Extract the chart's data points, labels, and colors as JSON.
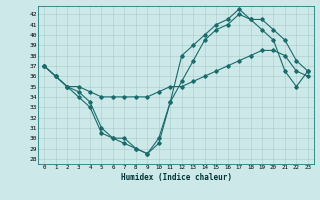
{
  "xlabel": "Humidex (Indice chaleur)",
  "ylabel": "",
  "bg_color": "#cde8e8",
  "grid_color": "#a8cccc",
  "line_color": "#1a6b6b",
  "xlim": [
    -0.5,
    23.5
  ],
  "ylim": [
    27.5,
    42.8
  ],
  "xticks": [
    0,
    1,
    2,
    3,
    4,
    5,
    6,
    7,
    8,
    9,
    10,
    11,
    12,
    13,
    14,
    15,
    16,
    17,
    18,
    19,
    20,
    21,
    22,
    23
  ],
  "yticks": [
    28,
    29,
    30,
    31,
    32,
    33,
    34,
    35,
    36,
    37,
    38,
    39,
    40,
    41,
    42
  ],
  "series": [
    {
      "x": [
        0,
        1,
        2,
        3,
        4,
        5,
        6,
        7,
        8,
        9,
        10,
        11,
        12,
        13,
        14,
        15,
        16,
        17,
        18,
        19,
        20,
        21,
        22,
        23
      ],
      "y": [
        37.0,
        36.0,
        35.0,
        34.0,
        33.0,
        30.5,
        30.0,
        29.5,
        29.0,
        28.5,
        30.0,
        33.5,
        35.5,
        37.5,
        39.5,
        40.5,
        41.0,
        42.0,
        41.5,
        40.5,
        39.5,
        36.5,
        35.0,
        36.5
      ]
    },
    {
      "x": [
        0,
        1,
        2,
        3,
        4,
        5,
        6,
        7,
        8,
        9,
        10,
        11,
        12,
        13,
        14,
        15,
        16,
        17,
        18,
        19,
        20,
        21,
        22,
        23
      ],
      "y": [
        37.0,
        36.0,
        35.0,
        34.5,
        33.5,
        31.0,
        30.0,
        30.0,
        29.0,
        28.5,
        29.5,
        33.5,
        38.0,
        39.0,
        40.0,
        41.0,
        41.5,
        42.5,
        41.5,
        41.5,
        40.5,
        39.5,
        37.5,
        36.5
      ]
    },
    {
      "x": [
        0,
        1,
        2,
        3,
        4,
        5,
        6,
        7,
        8,
        9,
        10,
        11,
        12,
        13,
        14,
        15,
        16,
        17,
        18,
        19,
        20,
        21,
        22,
        23
      ],
      "y": [
        37.0,
        36.0,
        35.0,
        35.0,
        34.5,
        34.0,
        34.0,
        34.0,
        34.0,
        34.0,
        34.5,
        35.0,
        35.0,
        35.5,
        36.0,
        36.5,
        37.0,
        37.5,
        38.0,
        38.5,
        38.5,
        38.0,
        36.5,
        36.0
      ]
    }
  ]
}
